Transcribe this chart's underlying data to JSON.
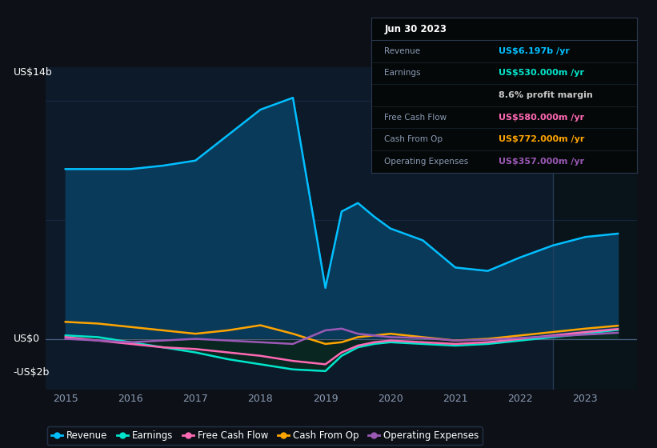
{
  "background_color": "#0d1117",
  "plot_bg_color": "#0d1a2a",
  "grid_color": "#1e3050",
  "title_date": "Jun 30 2023",
  "ylabel_top": "US$14b",
  "ylabel_zero": "US$0",
  "ylabel_neg": "-US$2b",
  "ylim": [
    -3000000000,
    16000000000
  ],
  "years": [
    2015.0,
    2015.5,
    2016.0,
    2016.5,
    2017.0,
    2017.5,
    2018.0,
    2018.5,
    2019.0,
    2019.25,
    2019.5,
    2019.75,
    2020.0,
    2020.5,
    2021.0,
    2021.5,
    2022.0,
    2022.5,
    2023.0,
    2023.5
  ],
  "revenue": [
    10000000000,
    10000000000,
    10000000000,
    10200000000,
    10500000000,
    12000000000,
    13500000000,
    14200000000,
    3000000000,
    7500000000,
    8000000000,
    7200000000,
    6500000000,
    5800000000,
    4200000000,
    4000000000,
    4800000000,
    5500000000,
    6000000000,
    6197000000
  ],
  "earnings": [
    200000000,
    100000000,
    -200000000,
    -500000000,
    -800000000,
    -1200000000,
    -1500000000,
    -1800000000,
    -1900000000,
    -1000000000,
    -500000000,
    -300000000,
    -200000000,
    -300000000,
    -400000000,
    -300000000,
    -100000000,
    100000000,
    300000000,
    530000000
  ],
  "free_cash_flow": [
    100000000,
    -100000000,
    -300000000,
    -500000000,
    -600000000,
    -800000000,
    -1000000000,
    -1300000000,
    -1500000000,
    -800000000,
    -400000000,
    -200000000,
    -100000000,
    -200000000,
    -300000000,
    -200000000,
    0,
    200000000,
    400000000,
    580000000
  ],
  "cash_from_op": [
    1000000000,
    900000000,
    700000000,
    500000000,
    300000000,
    500000000,
    800000000,
    300000000,
    -300000000,
    -200000000,
    100000000,
    200000000,
    300000000,
    100000000,
    -100000000,
    0,
    200000000,
    400000000,
    600000000,
    772000000
  ],
  "operating_expenses": [
    0,
    -100000000,
    -200000000,
    -100000000,
    0,
    -100000000,
    -200000000,
    -300000000,
    500000000,
    600000000,
    300000000,
    200000000,
    100000000,
    50000000,
    -100000000,
    -50000000,
    50000000,
    150000000,
    250000000,
    357000000
  ],
  "revenue_color": "#00bfff",
  "earnings_color": "#00e5cc",
  "fcf_color": "#ff69b4",
  "cashop_color": "#ffa500",
  "opex_color": "#9b59b6",
  "fill_revenue_color": "#0a3a5a",
  "legend_items": [
    "Revenue",
    "Earnings",
    "Free Cash Flow",
    "Cash From Op",
    "Operating Expenses"
  ],
  "legend_colors": [
    "#00bfff",
    "#00e5cc",
    "#ff69b4",
    "#ffa500",
    "#9b59b6"
  ],
  "xticks": [
    2015,
    2016,
    2017,
    2018,
    2019,
    2020,
    2021,
    2022,
    2023
  ],
  "divider_x": 2022.5,
  "xlim_left": 2014.7,
  "xlim_right": 2023.8,
  "line_width": 1.8,
  "info_rows": [
    {
      "label": "Jun 30 2023",
      "value": "",
      "value_color": "#ffffff",
      "is_title": true
    },
    {
      "label": "Revenue",
      "value": "US$6.197b /yr",
      "value_color": "#00bfff",
      "is_title": false
    },
    {
      "label": "Earnings",
      "value": "US$530.000m /yr",
      "value_color": "#00e5cc",
      "is_title": false
    },
    {
      "label": "",
      "value": "8.6% profit margin",
      "value_color": "#c8c8c8",
      "is_title": false
    },
    {
      "label": "Free Cash Flow",
      "value": "US$580.000m /yr",
      "value_color": "#ff69b4",
      "is_title": false
    },
    {
      "label": "Cash From Op",
      "value": "US$772.000m /yr",
      "value_color": "#ffa500",
      "is_title": false
    },
    {
      "label": "Operating Expenses",
      "value": "US$357.000m /yr",
      "value_color": "#9b59b6",
      "is_title": false
    }
  ]
}
